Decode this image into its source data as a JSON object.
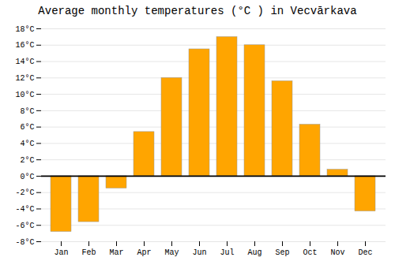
{
  "chart_data": {
    "type": "bar",
    "title": "Average monthly temperatures (°C ) in Vecvārkava",
    "categories": [
      "Jan",
      "Feb",
      "Mar",
      "Apr",
      "May",
      "Jun",
      "Jul",
      "Aug",
      "Sep",
      "Oct",
      "Nov",
      "Dec"
    ],
    "values": [
      -6.8,
      -5.6,
      -1.5,
      5.4,
      12.0,
      15.5,
      17.0,
      16.0,
      11.6,
      6.3,
      0.8,
      -4.3
    ],
    "color": "#FFA500",
    "ylim": [
      -8,
      18
    ],
    "yticks": [
      {
        "value": -8,
        "label": "-8°C"
      },
      {
        "value": -6,
        "label": "-6°C"
      },
      {
        "value": -4,
        "label": "-4°C"
      },
      {
        "value": -2,
        "label": "-2°C"
      },
      {
        "value": 0,
        "label": "0°C"
      },
      {
        "value": 2,
        "label": "2°C"
      },
      {
        "value": 4,
        "label": "4°C"
      },
      {
        "value": 6,
        "label": "6°C"
      },
      {
        "value": 8,
        "label": "8°C"
      },
      {
        "value": 10,
        "label": "10°C"
      },
      {
        "value": 12,
        "label": "12°C"
      },
      {
        "value": 14,
        "label": "14°C"
      },
      {
        "value": 16,
        "label": "16°C"
      },
      {
        "value": 18,
        "label": "18°C"
      }
    ],
    "grid": true
  }
}
